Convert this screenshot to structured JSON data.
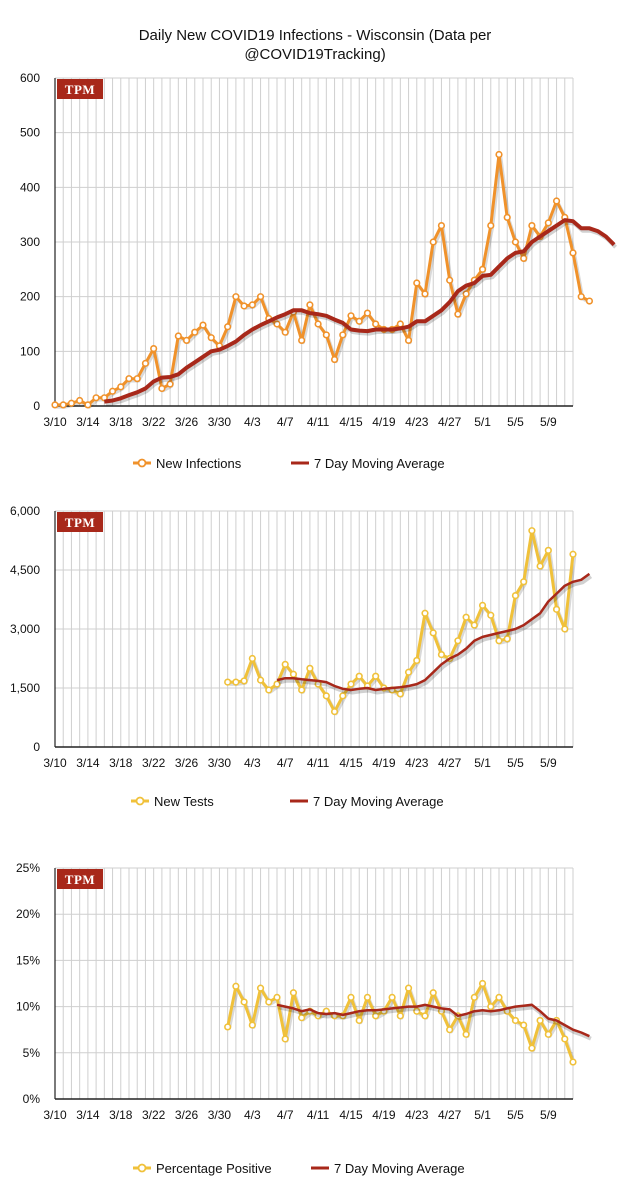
{
  "title_line1": "Daily New COVID19 Infections - Wisconsin (Data per",
  "title_line2": "@COVID19Tracking)",
  "logo_text": "TPM",
  "colors": {
    "infections": "#f0922b",
    "tests": "#f0c13a",
    "average": "#a8281a",
    "logo_bg": "#a8281a",
    "grid": "#cfcfcf"
  },
  "x_tick_labels": [
    "3/10",
    "3/14",
    "3/18",
    "3/22",
    "3/26",
    "3/30",
    "4/3",
    "4/7",
    "4/11",
    "4/15",
    "4/19",
    "4/23",
    "4/27",
    "5/1",
    "5/5",
    "5/9"
  ],
  "chart_data": [
    {
      "type": "line",
      "x_dates": "3/10 through 5/12 (daily)",
      "y_ticks": [
        "0",
        "100",
        "200",
        "300",
        "400",
        "500",
        "600"
      ],
      "ylim": [
        0,
        600
      ],
      "series": [
        {
          "name": "New Infections",
          "start_date": "3/10",
          "values": [
            2,
            2,
            5,
            10,
            2,
            15,
            15,
            27,
            35,
            50,
            50,
            78,
            105,
            32,
            40,
            128,
            120,
            135,
            148,
            125,
            110,
            145,
            200,
            183,
            185,
            200,
            160,
            150,
            135,
            172,
            120,
            185,
            150,
            130,
            85,
            130,
            165,
            155,
            170,
            150,
            140,
            140,
            150,
            120,
            225,
            205,
            300,
            330,
            230,
            168,
            205,
            230,
            250,
            330,
            460,
            345,
            300,
            270,
            330,
            310,
            335,
            375,
            345,
            280,
            200,
            192
          ]
        },
        {
          "name": "7 Day Moving Average",
          "start_date": "3/16",
          "values": [
            8,
            10,
            14,
            20,
            25,
            32,
            45,
            52,
            53,
            58,
            70,
            80,
            90,
            100,
            103,
            110,
            118,
            130,
            140,
            148,
            155,
            162,
            168,
            175,
            175,
            170,
            168,
            165,
            158,
            152,
            140,
            138,
            137,
            140,
            140,
            140,
            142,
            145,
            155,
            155,
            165,
            175,
            190,
            210,
            220,
            225,
            238,
            240,
            255,
            270,
            280,
            283,
            300,
            310,
            320,
            330,
            340,
            338,
            325,
            325,
            320,
            310,
            295
          ]
        }
      ]
    },
    {
      "type": "line",
      "x_dates": "3/10 through 5/12 (daily)",
      "y_ticks": [
        "0",
        "1,500",
        "3,000",
        "4,500",
        "6,000"
      ],
      "ylim": [
        0,
        6000
      ],
      "series": [
        {
          "name": "New Tests",
          "start_date": "3/31",
          "values": [
            1650,
            1650,
            1680,
            2250,
            1700,
            1450,
            1600,
            2100,
            1850,
            1450,
            2000,
            1600,
            1300,
            900,
            1300,
            1600,
            1800,
            1550,
            1800,
            1500,
            1450,
            1350,
            1900,
            2200,
            3400,
            2900,
            2350,
            2250,
            2700,
            3300,
            3100,
            3600,
            3350,
            2700,
            2750,
            3850,
            4200,
            5500,
            4600,
            5000,
            3500,
            3000,
            4900
          ]
        },
        {
          "name": "7 Day Moving Average",
          "start_date": "4/6",
          "values": [
            1700,
            1750,
            1750,
            1720,
            1700,
            1680,
            1650,
            1550,
            1480,
            1450,
            1480,
            1500,
            1450,
            1480,
            1500,
            1520,
            1550,
            1600,
            1700,
            1900,
            2100,
            2250,
            2350,
            2500,
            2700,
            2800,
            2850,
            2900,
            2950,
            3000,
            3100,
            3250,
            3400,
            3700,
            3900,
            4100,
            4200,
            4250,
            4400
          ]
        }
      ]
    },
    {
      "type": "line",
      "x_dates": "3/10 through 5/12 (daily)",
      "y_ticks": [
        "0%",
        "5%",
        "10%",
        "15%",
        "20%",
        "25%"
      ],
      "ylim": [
        0,
        25
      ],
      "series": [
        {
          "name": "Percentage Positive",
          "start_date": "3/31",
          "values": [
            7.8,
            12.2,
            10.5,
            8.0,
            12.0,
            10.5,
            11.0,
            6.5,
            11.5,
            8.8,
            9.5,
            9.0,
            9.5,
            9.0,
            9.0,
            11.0,
            8.5,
            11.0,
            9.0,
            9.5,
            11.0,
            9.0,
            12.0,
            9.5,
            9.0,
            11.5,
            9.5,
            7.5,
            9.0,
            7.0,
            11.0,
            12.5,
            10.0,
            11.0,
            9.5,
            8.5,
            8.0,
            5.5,
            8.5,
            7.0,
            8.5,
            6.5,
            4.0
          ]
        },
        {
          "name": "7 Day Moving Average",
          "start_date": "4/6",
          "values": [
            10.2,
            10.0,
            9.8,
            9.5,
            9.7,
            9.3,
            9.2,
            9.3,
            9.1,
            9.3,
            9.5,
            9.6,
            9.6,
            9.7,
            9.8,
            9.9,
            10.0,
            10.0,
            10.2,
            10.0,
            9.8,
            9.7,
            9.0,
            9.2,
            9.5,
            9.6,
            9.5,
            9.6,
            9.8,
            10.0,
            10.1,
            10.2,
            9.5,
            8.7,
            8.5,
            8.0,
            7.5,
            7.2,
            6.8
          ]
        }
      ]
    }
  ],
  "legends": [
    {
      "line_label": "New Infections",
      "avg_label": "7 Day Moving Average"
    },
    {
      "line_label": "New Tests",
      "avg_label": "7 Day Moving Average"
    },
    {
      "line_label": "Percentage Positive",
      "avg_label": "7 Day Moving Average"
    }
  ]
}
